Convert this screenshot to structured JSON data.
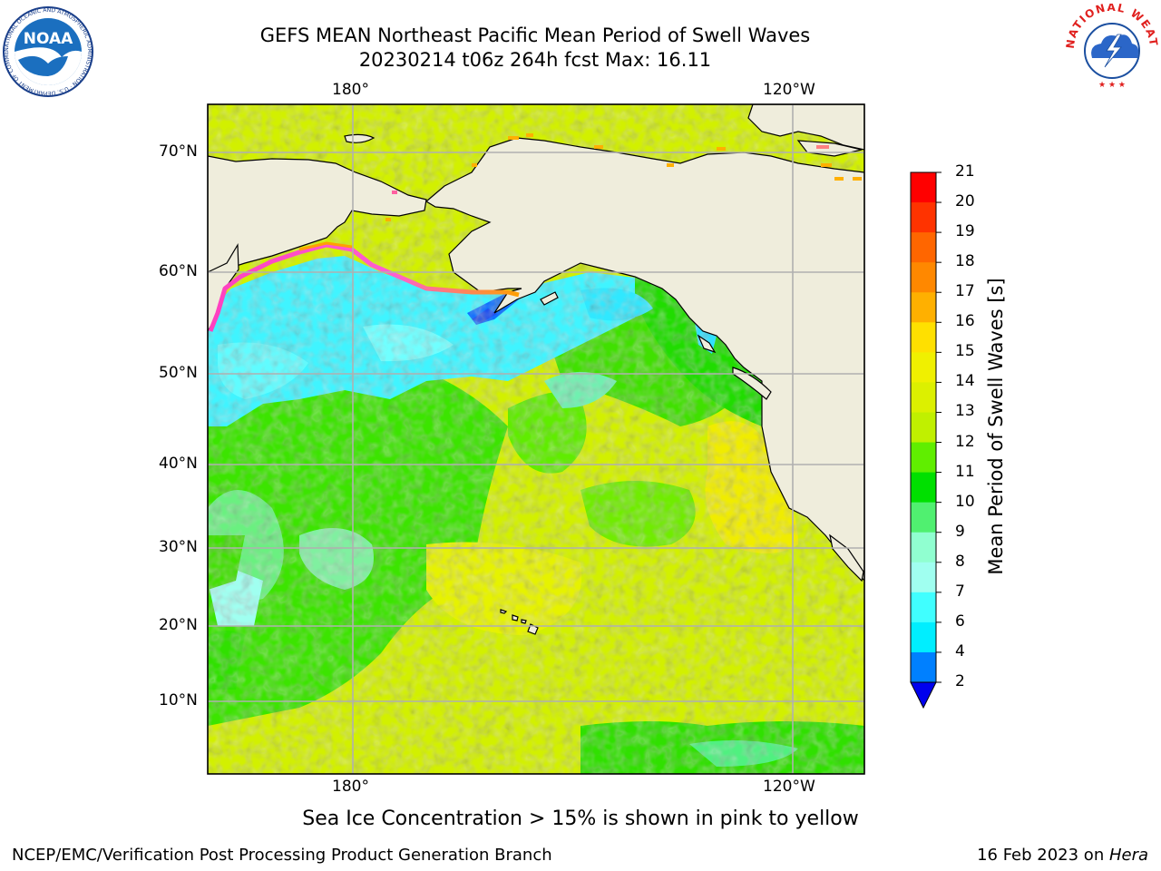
{
  "header": {
    "title_line1": "GEFS MEAN Northeast Pacific Mean Period of Swell Waves",
    "title_line2": "20230214 t06z 264h fcst   Max: 16.11"
  },
  "logos": {
    "left": "NOAA",
    "left_ring": "NATIONAL OCEANIC AND ATMOSPHERIC ADMINISTRATION · U.S. DEPARTMENT OF COMMERCE",
    "right_ring": "NATIONAL WEATHER SERVICE"
  },
  "axes": {
    "lon_top": [
      "180°",
      "120°W"
    ],
    "lon_bottom": [
      "180°",
      "120°W"
    ],
    "lat": [
      "70°N",
      "60°N",
      "50°N",
      "40°N",
      "30°N",
      "20°N",
      "10°N"
    ]
  },
  "colorbar": {
    "label": "Mean Period of Swell Waves [s]",
    "ticks": [
      "21",
      "20",
      "19",
      "18",
      "17",
      "16",
      "15",
      "14",
      "13",
      "12",
      "11",
      "10",
      "9",
      "8",
      "7",
      "6",
      "4",
      "2"
    ],
    "colors": [
      "#ff0000",
      "#ff3300",
      "#ff6600",
      "#ff8800",
      "#ffb000",
      "#ffe000",
      "#f0f000",
      "#dcf000",
      "#c0f000",
      "#60ee00",
      "#00e000",
      "#50f070",
      "#90ffd0",
      "#a0fff0",
      "#40ffff",
      "#00eeff",
      "#0080ff",
      "#0000ee"
    ]
  },
  "map": {
    "land_color": "#efeddc",
    "ice_note": "Sea Ice Concentration > 15% is shown in pink to yellow"
  },
  "footer": {
    "left": "NCEP/EMC/Verification Post Processing Product Generation Branch",
    "right_date": "16 Feb 2023 on ",
    "right_host": "Hera"
  }
}
